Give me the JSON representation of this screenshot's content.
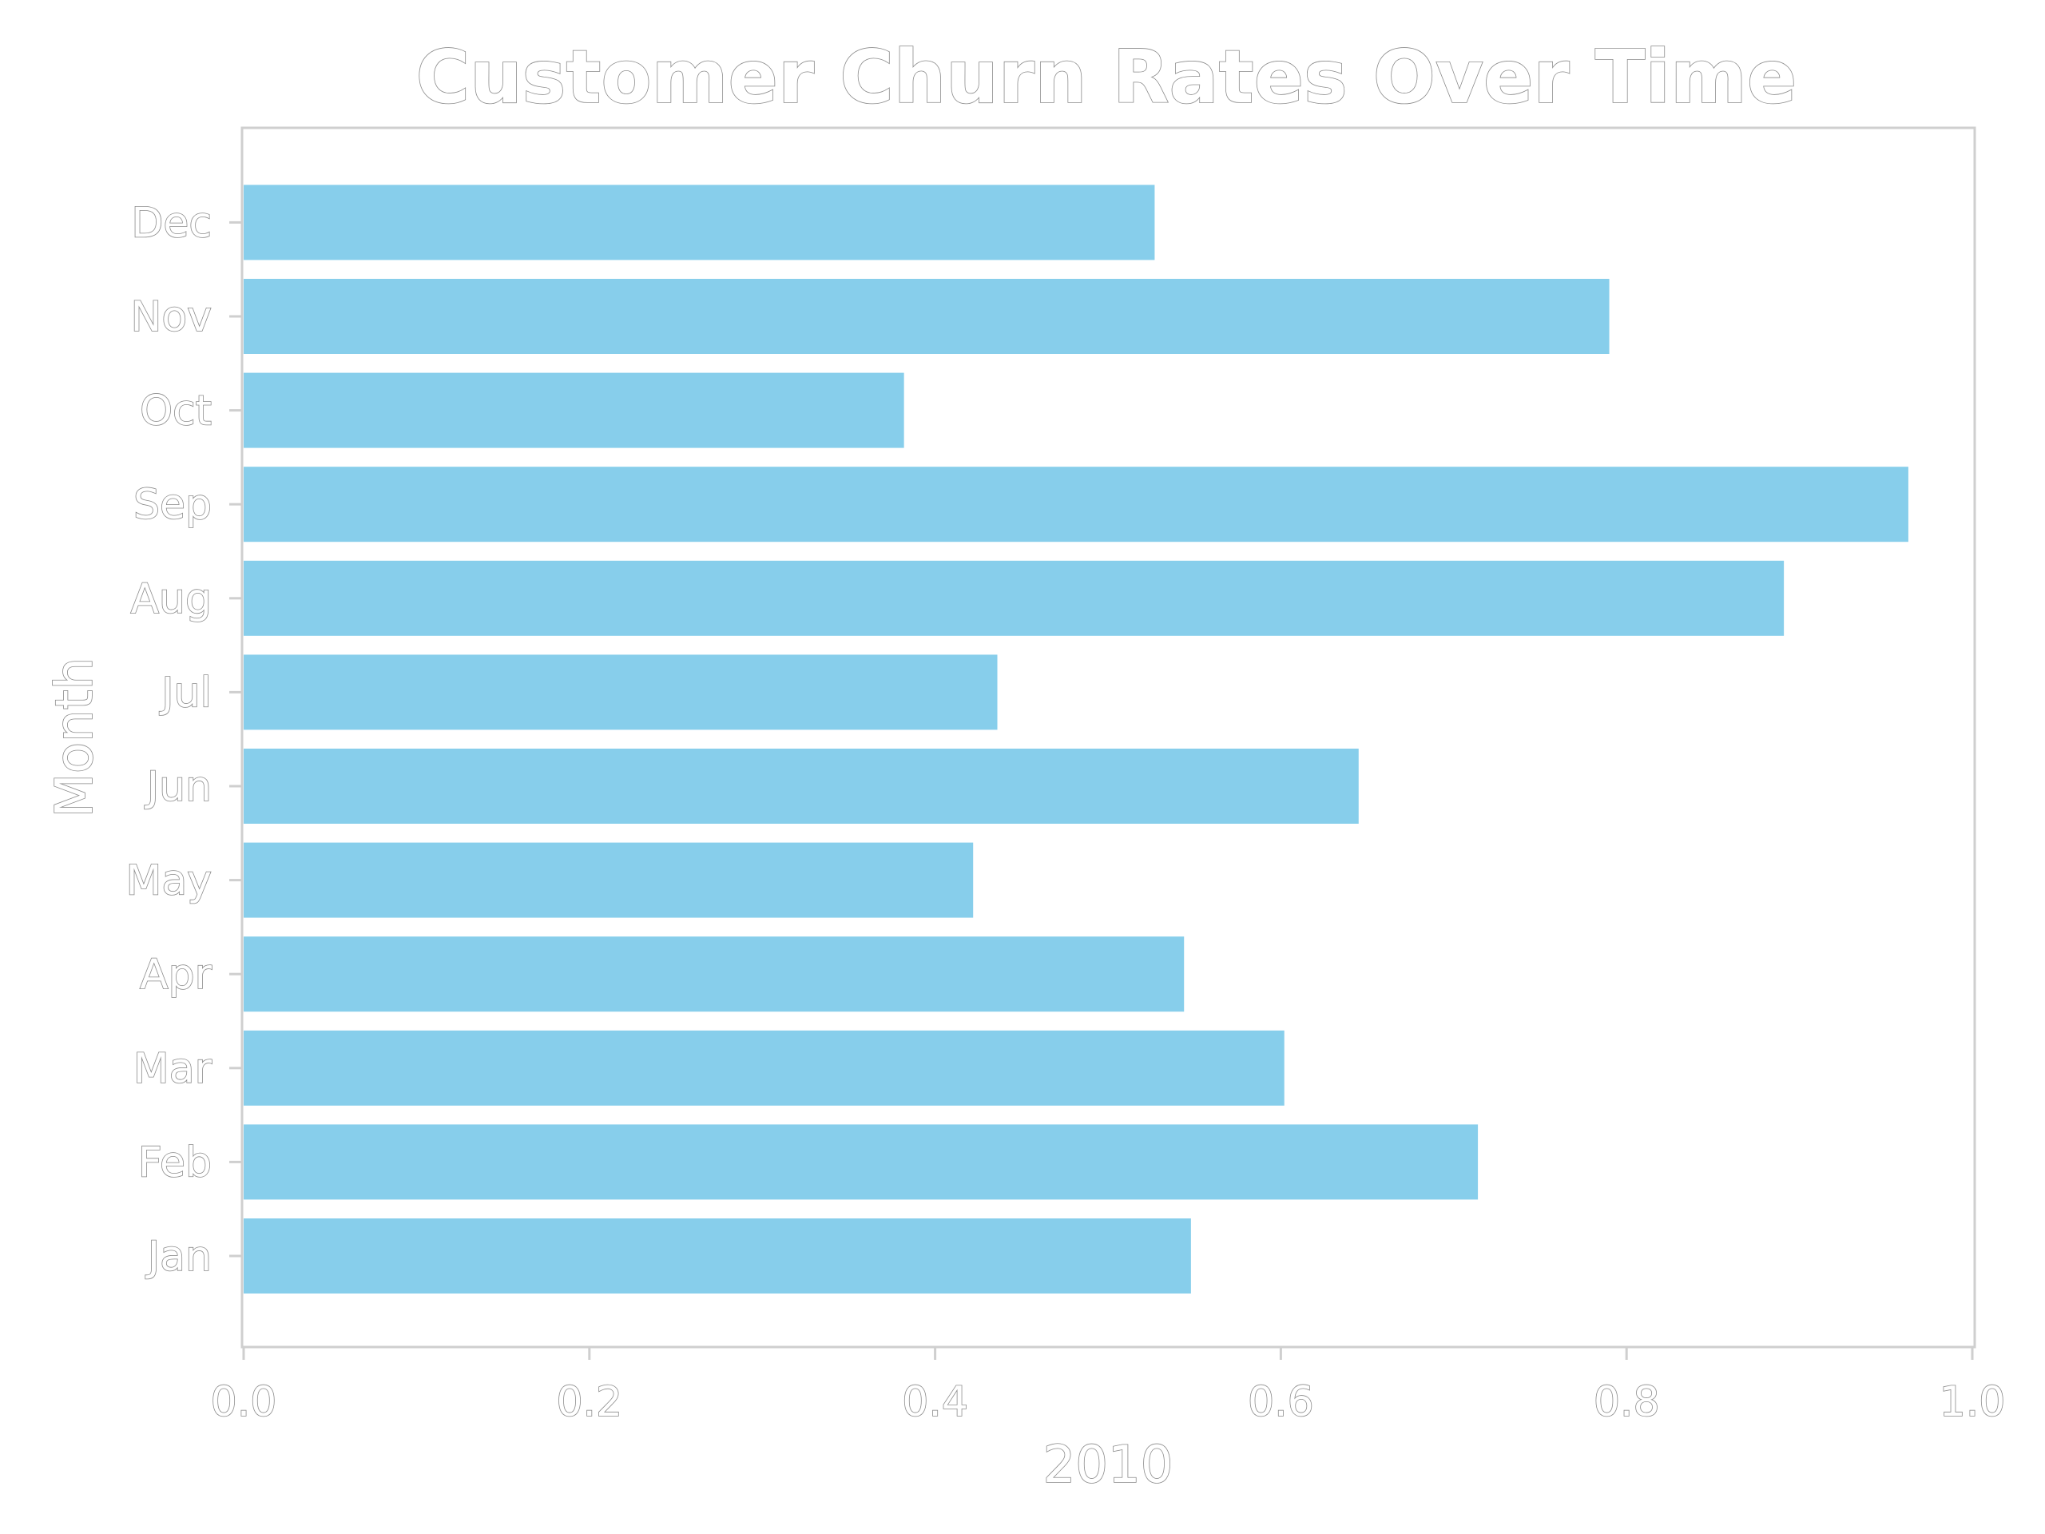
{
  "chart_data": {
    "type": "bar",
    "orientation": "horizontal",
    "title": "Customer Churn Rates Over Time",
    "xlabel": "2010",
    "ylabel": "Month",
    "categories": [
      "Jan",
      "Feb",
      "Mar",
      "Apr",
      "May",
      "Jun",
      "Jul",
      "Aug",
      "Sep",
      "Oct",
      "Nov",
      "Dec"
    ],
    "values": [
      0.548,
      0.714,
      0.602,
      0.544,
      0.422,
      0.645,
      0.436,
      0.891,
      0.963,
      0.382,
      0.79,
      0.527
    ],
    "xlim": [
      0.0,
      1.0
    ],
    "xticks": [
      "0.0",
      "0.2",
      "0.4",
      "0.6",
      "0.8",
      "1.0"
    ],
    "grid": false,
    "bar_color": "#87ceeb"
  }
}
